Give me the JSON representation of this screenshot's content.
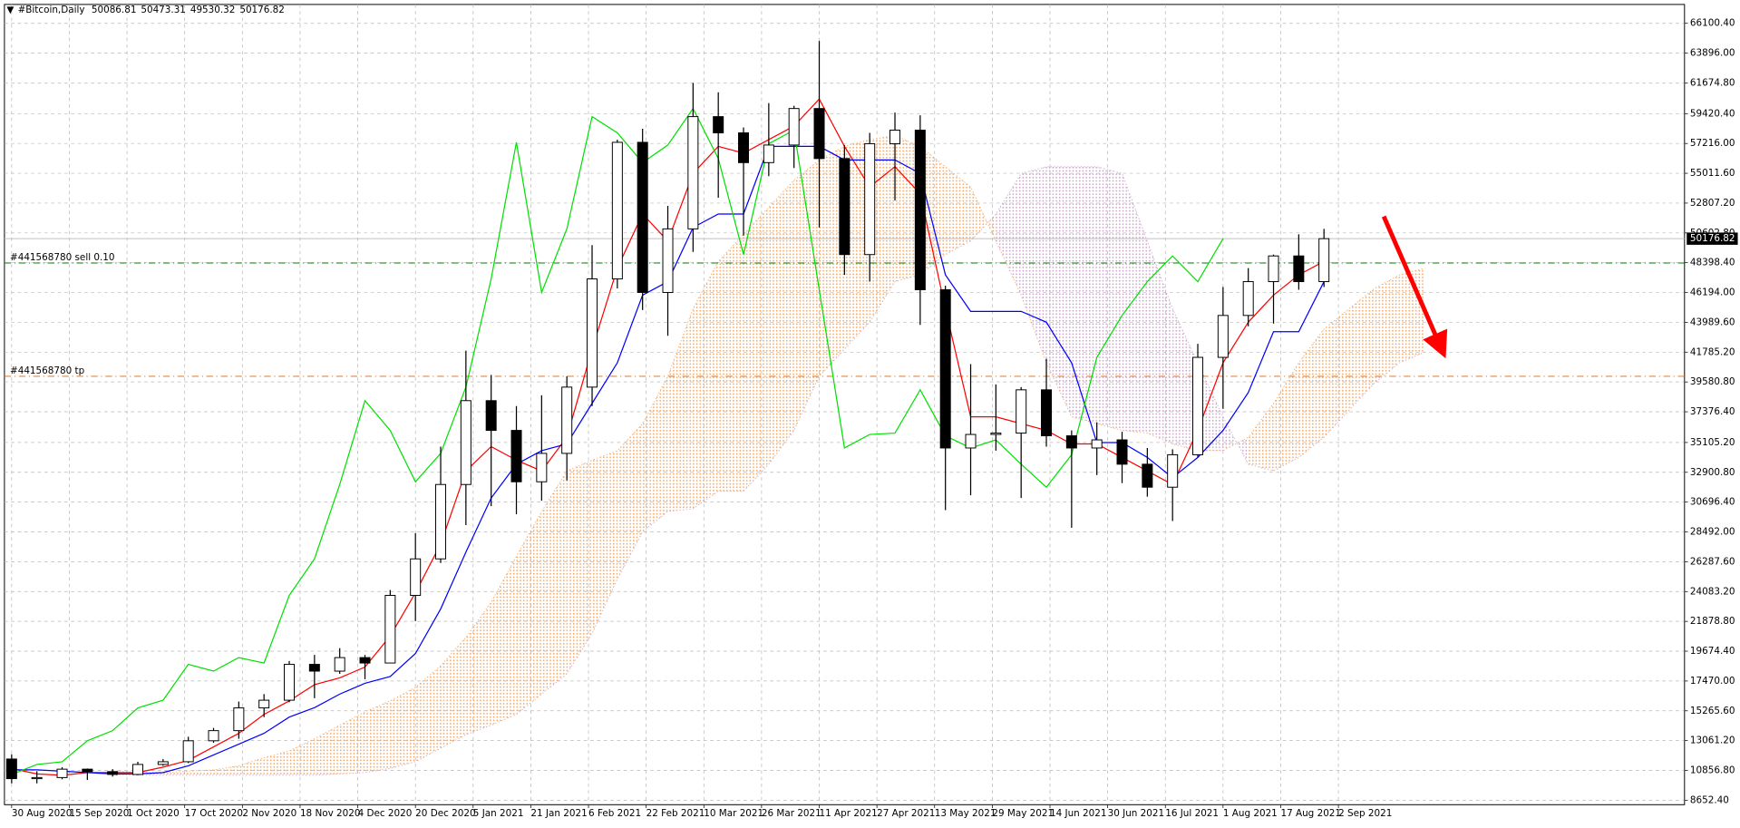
{
  "chart_data": {
    "type": "candlestick",
    "title": "#Bitcoin,Daily",
    "title_ohlc": [
      50086.81,
      50473.31,
      49530.32,
      50176.82
    ],
    "x": [
      "2020-08-30",
      "2020-09-06",
      "2020-09-13",
      "2020-09-20",
      "2020-09-27",
      "2020-10-04",
      "2020-10-11",
      "2020-10-18",
      "2020-10-25",
      "2020-11-01",
      "2020-11-08",
      "2020-11-15",
      "2020-11-22",
      "2020-11-29",
      "2020-12-06",
      "2020-12-13",
      "2020-12-20",
      "2020-12-27",
      "2021-01-03",
      "2021-01-10",
      "2021-01-17",
      "2021-01-24",
      "2021-01-31",
      "2021-02-07",
      "2021-02-14",
      "2021-02-21",
      "2021-02-28",
      "2021-03-07",
      "2021-03-14",
      "2021-03-21",
      "2021-03-28",
      "2021-04-04",
      "2021-04-11",
      "2021-04-18",
      "2021-04-25",
      "2021-05-02",
      "2021-05-09",
      "2021-05-16",
      "2021-05-23",
      "2021-05-30",
      "2021-06-06",
      "2021-06-13",
      "2021-06-20",
      "2021-06-27",
      "2021-07-04",
      "2021-07-11",
      "2021-07-18",
      "2021-07-25",
      "2021-08-01",
      "2021-08-08",
      "2021-08-15",
      "2021-08-22",
      "2021-08-29"
    ],
    "open": [
      11700,
      10250,
      10330,
      10950,
      10770,
      10560,
      11300,
      11500,
      13050,
      13800,
      15480,
      16050,
      18700,
      18200,
      19200,
      18800,
      23800,
      26500,
      32000,
      38200,
      36000,
      32200,
      34300,
      39200,
      47200,
      57300,
      46200,
      50900,
      59200,
      58000,
      55800,
      57100,
      59800,
      56100,
      49000,
      57200,
      58200,
      46400,
      34700,
      35700,
      35800,
      39000,
      35600,
      34700,
      35300,
      33500,
      31800,
      34200,
      41400,
      44500,
      47000,
      48900,
      47000
    ],
    "high": [
      12050,
      10800,
      11100,
      11000,
      10950,
      11500,
      11700,
      13350,
      14000,
      15950,
      16500,
      18950,
      19400,
      19900,
      19400,
      24200,
      28400,
      34800,
      41900,
      40100,
      37800,
      38600,
      40000,
      49700,
      57500,
      58300,
      52600,
      61700,
      61000,
      58400,
      60200,
      60000,
      64800,
      57100,
      58000,
      59500,
      59300,
      46700,
      40900,
      39400,
      39200,
      41300,
      36000,
      36600,
      35900,
      34700,
      34600,
      42400,
      46600,
      48000,
      49000,
      50500,
      50900
    ],
    "low": [
      9900,
      9900,
      10200,
      10150,
      10400,
      10500,
      11200,
      11400,
      12900,
      13200,
      14800,
      15900,
      16200,
      18000,
      17600,
      18800,
      21900,
      26200,
      29000,
      30400,
      29800,
      30800,
      32300,
      37800,
      46500,
      44900,
      43000,
      49200,
      53200,
      50400,
      54800,
      55400,
      51000,
      47500,
      47000,
      53000,
      43800,
      30100,
      31200,
      34500,
      31000,
      34800,
      28800,
      32700,
      32100,
      31100,
      29300,
      34000,
      37600,
      43700,
      43900,
      46400,
      46600
    ],
    "close": [
      10250,
      10330,
      10950,
      10770,
      10560,
      11300,
      11500,
      13050,
      13800,
      15480,
      16050,
      18700,
      18200,
      19200,
      18800,
      23800,
      26500,
      32000,
      38200,
      36000,
      32200,
      34300,
      39200,
      47200,
      57300,
      46200,
      50900,
      59200,
      58000,
      55800,
      57100,
      59800,
      56100,
      49000,
      57200,
      58200,
      46400,
      34700,
      35700,
      35800,
      39000,
      35600,
      34700,
      35300,
      33500,
      31800,
      34200,
      41400,
      44500,
      47000,
      48900,
      47000,
      50176.82
    ],
    "candle_color": "#000000",
    "grid": true,
    "lines": [
      {
        "color": "#ff0000",
        "values": [
          11000,
          10600,
          10500,
          10700,
          10700,
          10700,
          11100,
          11600,
          12600,
          13600,
          15000,
          16000,
          17200,
          17700,
          18500,
          20800,
          24000,
          27600,
          33000,
          34800,
          33800,
          33000,
          35500,
          42000,
          48000,
          52000,
          50000,
          55000,
          57000,
          56500,
          57500,
          58500,
          60500,
          57000,
          54000,
          55500,
          53500,
          45000,
          37000,
          37000,
          36500,
          36000,
          35000,
          35000,
          34000,
          33000,
          32000,
          36000,
          41000,
          44000,
          46000,
          47500,
          48500
        ]
      },
      {
        "color": "#0000ff",
        "values": [
          10900,
          10900,
          10800,
          10700,
          10600,
          10600,
          10700,
          11200,
          12000,
          12800,
          13600,
          14800,
          15500,
          16500,
          17300,
          17800,
          19500,
          22800,
          27000,
          31000,
          33500,
          34500,
          35000,
          38000,
          41000,
          46000,
          47000,
          51000,
          52000,
          52000,
          57000,
          57000,
          57000,
          56000,
          56000,
          56000,
          55000,
          47500,
          44800,
          44800,
          44800,
          44000,
          41000,
          35100,
          35100,
          34000,
          32500,
          34000,
          36000,
          38800,
          43300,
          43300,
          47000
        ]
      },
      {
        "color": "#00e000",
        "x": [
          "2020-08-30",
          "2020-09-06",
          "2020-09-13",
          "2020-09-20",
          "2020-09-27",
          "2020-10-04",
          "2020-10-11",
          "2020-10-18",
          "2020-10-25",
          "2020-11-01",
          "2020-11-08",
          "2020-11-15",
          "2020-11-22",
          "2020-11-29",
          "2020-12-06",
          "2020-12-13",
          "2020-12-20",
          "2020-12-27",
          "2021-01-03",
          "2021-01-10",
          "2021-01-17",
          "2021-01-24",
          "2021-01-31",
          "2021-02-07",
          "2021-02-14",
          "2021-02-21",
          "2021-02-28",
          "2021-03-07",
          "2021-03-14",
          "2021-03-21",
          "2021-03-28",
          "2021-04-04",
          "2021-04-11",
          "2021-04-18",
          "2021-04-25",
          "2021-05-02",
          "2021-05-09",
          "2021-05-16",
          "2021-05-23",
          "2021-05-30",
          "2021-06-06",
          "2021-06-13",
          "2021-06-20",
          "2021-06-27",
          "2021-07-04",
          "2021-07-11",
          "2021-07-18",
          "2021-07-25",
          "2021-08-01"
        ],
        "values": [
          10560,
          11300,
          11500,
          13050,
          13800,
          15480,
          16050,
          18700,
          18200,
          19200,
          18800,
          23800,
          26500,
          32000,
          38200,
          36000,
          32200,
          34300,
          39200,
          47200,
          57300,
          46200,
          50900,
          59200,
          58000,
          55800,
          57100,
          59800,
          56100,
          49000,
          57200,
          58200,
          46400,
          34700,
          35700,
          35800,
          39000,
          35600,
          34700,
          35300,
          33500,
          31800,
          34200,
          41400,
          44500,
          47000,
          48900,
          47000,
          50176.82
        ]
      }
    ],
    "cloud": {
      "x": [
        "2020-09-27",
        "2020-10-04",
        "2020-10-11",
        "2020-10-18",
        "2020-10-25",
        "2020-11-01",
        "2020-11-08",
        "2020-11-15",
        "2020-11-22",
        "2020-11-29",
        "2020-12-06",
        "2020-12-13",
        "2020-12-20",
        "2020-12-27",
        "2021-01-03",
        "2021-01-10",
        "2021-01-17",
        "2021-01-24",
        "2021-01-31",
        "2021-02-07",
        "2021-02-14",
        "2021-02-21",
        "2021-02-28",
        "2021-03-07",
        "2021-03-14",
        "2021-03-21",
        "2021-03-28",
        "2021-04-04",
        "2021-04-11",
        "2021-04-18",
        "2021-04-25",
        "2021-05-02",
        "2021-05-09",
        "2021-05-16",
        "2021-05-23",
        "2021-05-30",
        "2021-06-06",
        "2021-06-13",
        "2021-06-20",
        "2021-06-27",
        "2021-07-04",
        "2021-07-11",
        "2021-07-18",
        "2021-07-25",
        "2021-08-01",
        "2021-08-08",
        "2021-08-15",
        "2021-08-22",
        "2021-08-29",
        "2021-09-05",
        "2021-09-12",
        "2021-09-19",
        "2021-09-26"
      ],
      "span_a": [
        10800,
        10700,
        10700,
        10800,
        10900,
        11200,
        11800,
        12300,
        13200,
        14200,
        15200,
        16000,
        17000,
        18600,
        20700,
        23300,
        26700,
        30000,
        33000,
        33800,
        34500,
        36500,
        40000,
        45000,
        48500,
        50500,
        52500,
        54500,
        56000,
        57000,
        57500,
        57800,
        57000,
        55500,
        54000,
        50000,
        46000,
        41000,
        37000,
        36500,
        36000,
        35800,
        35000,
        34500,
        34500,
        35500,
        38000,
        41000,
        43500,
        45000,
        46500,
        47500,
        48000
      ],
      "span_b": [
        10500,
        10500,
        10500,
        10500,
        10500,
        10500,
        10500,
        10500,
        10500,
        10600,
        10700,
        11000,
        11500,
        12500,
        13500,
        14200,
        15000,
        16500,
        18000,
        21000,
        25000,
        28500,
        30000,
        30200,
        31500,
        31500,
        33500,
        36000,
        40000,
        42000,
        44000,
        47000,
        47500,
        49000,
        50000,
        52000,
        55000,
        55500,
        55500,
        55500,
        55000,
        50000,
        45000,
        41000,
        37000,
        33500,
        33000,
        34000,
        35500,
        37500,
        39500,
        41000,
        41800
      ],
      "up_color": "#f4a460",
      "down_color": "#c8a2c8"
    },
    "levels": [
      {
        "label": "#441568780 sell 0.10",
        "value": 48380,
        "color": "#008000"
      },
      {
        "label": "#441568780 tp",
        "value": 40000,
        "color": "#d2691e"
      }
    ],
    "last_price": 50176.82,
    "xlim": [
      "2020-08-28",
      "2021-12-07"
    ],
    "ylim": [
      8324.1,
      67495.6
    ],
    "xticks": [
      {
        "value": "2020-08-30",
        "label": "30 Aug 2020"
      },
      {
        "value": "2020-09-15",
        "label": "15 Sep 2020"
      },
      {
        "value": "2020-10-01",
        "label": "1 Oct 2020"
      },
      {
        "value": "2020-10-17",
        "label": "17 Oct 2020"
      },
      {
        "value": "2020-11-02",
        "label": "2 Nov 2020"
      },
      {
        "value": "2020-11-18",
        "label": "18 Nov 2020"
      },
      {
        "value": "2020-12-04",
        "label": "4 Dec 2020"
      },
      {
        "value": "2020-12-20",
        "label": "20 Dec 2020"
      },
      {
        "value": "2021-01-05",
        "label": "5 Jan 2021"
      },
      {
        "value": "2021-01-21",
        "label": "21 Jan 2021"
      },
      {
        "value": "2021-02-06",
        "label": "6 Feb 2021"
      },
      {
        "value": "2021-02-22",
        "label": "22 Feb 2021"
      },
      {
        "value": "2021-03-10",
        "label": "10 Mar 2021"
      },
      {
        "value": "2021-03-26",
        "label": "26 Mar 2021"
      },
      {
        "value": "2021-04-11",
        "label": "11 Apr 2021"
      },
      {
        "value": "2021-04-27",
        "label": "27 Apr 2021"
      },
      {
        "value": "2021-05-13",
        "label": "13 May 2021"
      },
      {
        "value": "2021-05-29",
        "label": "29 May 2021"
      },
      {
        "value": "2021-06-14",
        "label": "14 Jun 2021"
      },
      {
        "value": "2021-06-30",
        "label": "30 Jun 2021"
      },
      {
        "value": "2021-07-16",
        "label": "16 Jul 2021"
      },
      {
        "value": "2021-08-01",
        "label": "1 Aug 2021"
      },
      {
        "value": "2021-08-17",
        "label": "17 Aug 2021"
      },
      {
        "value": "2021-09-02",
        "label": "2 Sep 2021"
      }
    ],
    "yticks": [
      {
        "value": 66100.4,
        "label": "66100.40"
      },
      {
        "value": 63896,
        "label": "63896.00"
      },
      {
        "value": 61674.8,
        "label": "61674.80"
      },
      {
        "value": 59420.4,
        "label": "59420.40"
      },
      {
        "value": 57216,
        "label": "57216.00"
      },
      {
        "value": 55011.6,
        "label": "55011.60"
      },
      {
        "value": 52807.2,
        "label": "52807.20"
      },
      {
        "value": 50602.8,
        "label": "50602.80"
      },
      {
        "value": 48398.4,
        "label": "48398.40"
      },
      {
        "value": 46194,
        "label": "46194.00"
      },
      {
        "value": 43989.6,
        "label": "43989.60"
      },
      {
        "value": 41785.2,
        "label": "41785.20"
      },
      {
        "value": 39580.8,
        "label": "39580.80"
      },
      {
        "value": 37376.4,
        "label": "37376.40"
      },
      {
        "value": 35105.2,
        "label": "35105.20"
      },
      {
        "value": 32900.8,
        "label": "32900.80"
      },
      {
        "value": 30696.4,
        "label": "30696.40"
      },
      {
        "value": 28492,
        "label": "28492.00"
      },
      {
        "value": 26287.6,
        "label": "26287.60"
      },
      {
        "value": 24083.2,
        "label": "24083.20"
      },
      {
        "value": 21878.8,
        "label": "21878.80"
      },
      {
        "value": 19674.4,
        "label": "19674.40"
      },
      {
        "value": 17470,
        "label": "17470.00"
      },
      {
        "value": 15265.6,
        "label": "15265.60"
      },
      {
        "value": 13061.2,
        "label": "13061.20"
      },
      {
        "value": 10856.8,
        "label": "10856.80"
      },
      {
        "value": 8652.4,
        "label": "8652.40"
      }
    ]
  }
}
